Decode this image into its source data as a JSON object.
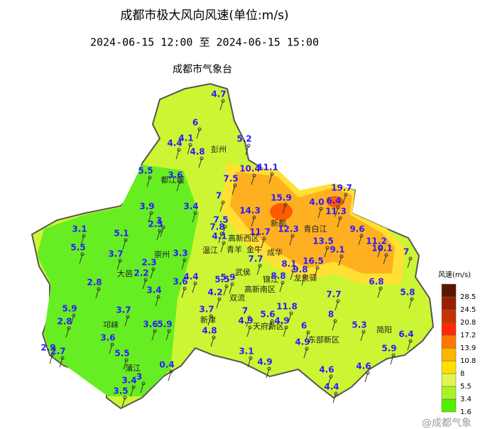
{
  "header": {
    "title": "成都市极大风向风速(单位:m/s)",
    "time_range": "2024-06-15 12:00 至 2024-06-15 15:00",
    "agency": "成都市气象台"
  },
  "places": [
    "彭州",
    "都江堰",
    "青白江",
    "新都",
    "高新西区",
    "温江",
    "崇州",
    "青羊",
    "金牛",
    "成华",
    "武侯",
    "锦江",
    "龙泉驿",
    "高新南区",
    "双流",
    "新津",
    "天府新区",
    "东部新区",
    "简阳",
    "大邑",
    "邛崃",
    "蒲江"
  ],
  "stations": [
    "4.7",
    "6",
    "4.1",
    "4.4",
    "4.8",
    "5.2",
    "5.5",
    "3.6",
    "10.4",
    "11.1",
    "7.5",
    "7",
    "15.9",
    "19.7",
    "4.0",
    "6.4",
    "11.3",
    "3.9",
    "3.4",
    "14.3",
    "3",
    "2.3",
    "7.5",
    "9.6",
    "3.1",
    "5.1",
    "7.8",
    "11.7",
    "12.3",
    "4.1",
    "13.5",
    "11.2",
    "10.1",
    "7",
    "5.5",
    "3.7",
    "3.3",
    "9.1",
    "2.3",
    "7.7",
    "16.5",
    "8.1",
    "9.8",
    "2.2",
    "4.4",
    "5.9",
    "8.8",
    "3.6",
    "2.8",
    "5.5",
    "6.8",
    "3.4",
    "4.2",
    "5.8",
    "7.7",
    "5.9",
    "3.7",
    "3.7",
    "7",
    "11.8",
    "5.6",
    "8",
    "3.6",
    "5.9",
    "4.9",
    "4.9",
    "6",
    "5.3",
    "2.8",
    "4.8",
    "6.4",
    "3.6",
    "4.9",
    "2.9",
    "2.7",
    "5.5",
    "5.9",
    "3.1",
    "0.4",
    "4.9",
    "4.6",
    "4.6",
    "3",
    "3.4",
    "4.4",
    "3.5"
  ],
  "legend": {
    "title": "风速(m/s)",
    "items": [
      {
        "label": "1.6",
        "color": "#55f000"
      },
      {
        "label": "3.4",
        "color": "#aaf22a"
      },
      {
        "label": "5.5",
        "color": "#e4f550"
      },
      {
        "label": "8",
        "color": "#ffe000"
      },
      {
        "label": "10.8",
        "color": "#ffb400"
      },
      {
        "label": "13.9",
        "color": "#ff7800"
      },
      {
        "label": "17.2",
        "color": "#ff2a00"
      },
      {
        "label": "20.8",
        "color": "#c83200"
      },
      {
        "label": "24.5",
        "color": "#962000"
      },
      {
        "label": "28.5",
        "color": "#5a1800"
      }
    ]
  },
  "watermark": "@成都气象"
}
